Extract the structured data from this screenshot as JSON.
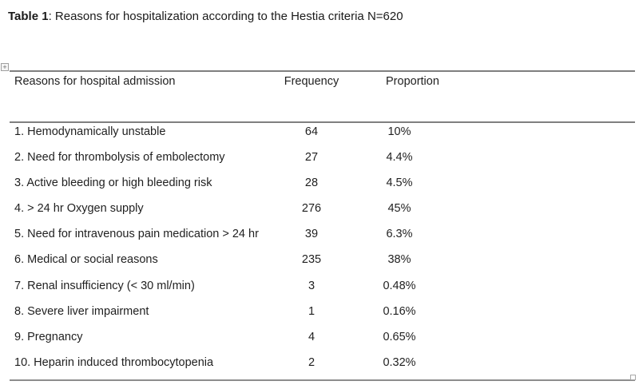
{
  "caption": {
    "label": "Table 1",
    "text": ": Reasons for hospitalization according to the Hestia criteria N=620"
  },
  "table": {
    "columns": [
      "Reasons for hospital admission",
      "Frequency",
      "Proportion"
    ],
    "rows": [
      {
        "reason": "1. Hemodynamically unstable",
        "frequency": "64",
        "proportion": "10%"
      },
      {
        "reason": "2. Need for thrombolysis of embolectomy",
        "frequency": "27",
        "proportion": "4.4%"
      },
      {
        "reason": "3. Active bleeding or high bleeding risk",
        "frequency": "28",
        "proportion": "4.5%"
      },
      {
        "reason": "4. > 24 hr Oxygen supply",
        "frequency": "276",
        "proportion": "45%"
      },
      {
        "reason": "5. Need for intravenous pain medication > 24 hr",
        "frequency": "39",
        "proportion": "6.3%"
      },
      {
        "reason": "6. Medical or social reasons",
        "frequency": "235",
        "proportion": "38%"
      },
      {
        "reason": "7. Renal insufficiency (< 30 ml/min)",
        "frequency": "3",
        "proportion": "0.48%"
      },
      {
        "reason": "8. Severe liver impairment",
        "frequency": "1",
        "proportion": "0.16%"
      },
      {
        "reason": "9. Pregnancy",
        "frequency": "4",
        "proportion": "0.65%"
      },
      {
        "reason": "10. Heparin induced thrombocytopenia",
        "frequency": "2",
        "proportion": "0.32%"
      }
    ]
  },
  "icons": {
    "move_handle_glyph": "+"
  },
  "colors": {
    "line": "#7f7f7f",
    "text": "#1f1f1f",
    "background": "#ffffff"
  }
}
